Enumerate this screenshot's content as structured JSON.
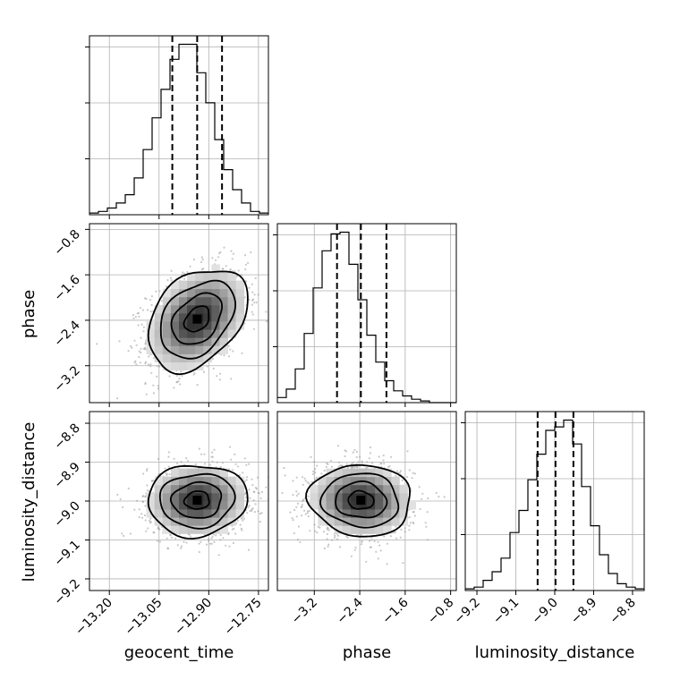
{
  "chart_data": {
    "type": "corner",
    "parameters": [
      "geocent_time",
      "phase",
      "luminosity_distance"
    ],
    "axis_labels": {
      "geocent_time": "geocent_time",
      "phase": "phase",
      "luminosity_distance": "luminosity_distance"
    },
    "ranges": {
      "geocent_time": [
        -13.26,
        -12.72
      ],
      "phase": [
        -3.85,
        -0.7
      ],
      "luminosity_distance": [
        -9.23,
        -8.77
      ]
    },
    "ticks": {
      "geocent_time": [
        -13.2,
        -13.05,
        -12.9,
        -12.75
      ],
      "phase": [
        -3.2,
        -2.4,
        -1.6,
        -0.8
      ],
      "luminosity_distance": [
        -9.2,
        -9.1,
        -9.0,
        -8.9,
        -8.8
      ]
    },
    "tick_labels": {
      "geocent_time": [
        "−13.20",
        "−13.05",
        "−12.90",
        "−12.75"
      ],
      "phase": [
        "−3.2",
        "−2.4",
        "−1.6",
        "−0.8"
      ],
      "luminosity_distance": [
        "−9.2",
        "−9.1",
        "−9.0",
        "−8.9",
        "−8.8"
      ]
    },
    "quantiles": {
      "geocent_time": [
        -13.01,
        -12.935,
        -12.86
      ],
      "phase": [
        -2.8,
        -2.38,
        -1.93
      ],
      "luminosity_distance": [
        -9.044,
        -8.998,
        -8.952
      ]
    },
    "histograms": {
      "geocent_time": {
        "bin_edges": [
          -13.26,
          -13.233,
          -13.206,
          -13.179,
          -13.152,
          -13.125,
          -13.098,
          -13.071,
          -13.044,
          -13.017,
          -12.99,
          -12.963,
          -12.936,
          -12.909,
          -12.882,
          -12.855,
          -12.828,
          -12.801,
          -12.774,
          -12.747,
          -12.72
        ],
        "counts": [
          1,
          2,
          4,
          7,
          12,
          22,
          39,
          58,
          75,
          93,
          102,
          102,
          85,
          67,
          45,
          27,
          15,
          7,
          2,
          1
        ]
      },
      "phase": {
        "bin_edges": [
          -3.85,
          -3.6925,
          -3.535,
          -3.3775,
          -3.22,
          -3.0625,
          -2.905,
          -2.7475,
          -2.59,
          -2.4325,
          -2.275,
          -2.1175,
          -1.96,
          -1.8025,
          -1.645,
          -1.4875,
          -1.33,
          -1.1725,
          -1.015,
          -0.8575,
          -0.7
        ],
        "counts": [
          3,
          8,
          20,
          41,
          68,
          90,
          100,
          101,
          82,
          61,
          40,
          24,
          13,
          7,
          4,
          2,
          1,
          0,
          0,
          0
        ]
      },
      "luminosity_distance": {
        "bin_edges": [
          -9.23,
          -9.207,
          -9.184,
          -9.161,
          -9.138,
          -9.115,
          -9.092,
          -9.069,
          -9.046,
          -9.023,
          -9.0,
          -8.977,
          -8.954,
          -8.931,
          -8.908,
          -8.885,
          -8.862,
          -8.839,
          -8.816,
          -8.793,
          -8.77
        ],
        "counts": [
          1,
          2,
          6,
          11,
          19,
          34,
          47,
          65,
          80,
          94,
          96,
          100,
          86,
          61,
          38,
          21,
          10,
          4,
          2,
          1
        ]
      }
    },
    "joint": [
      {
        "x": "geocent_time",
        "y": "phase",
        "mean": [
          -12.935,
          -2.38
        ],
        "sd": [
          0.075,
          0.45
        ],
        "rho": 0.35
      },
      {
        "x": "geocent_time",
        "y": "luminosity_distance",
        "mean": [
          -12.935,
          -8.998
        ],
        "sd": [
          0.075,
          0.046
        ],
        "rho": 0.05
      },
      {
        "x": "phase",
        "y": "luminosity_distance",
        "mean": [
          -2.38,
          -8.998
        ],
        "sd": [
          0.45,
          0.046
        ],
        "rho": -0.05
      }
    ],
    "contour_levels_sigma": [
      0.5,
      1.0,
      1.5,
      2.0
    ],
    "grid": true
  }
}
